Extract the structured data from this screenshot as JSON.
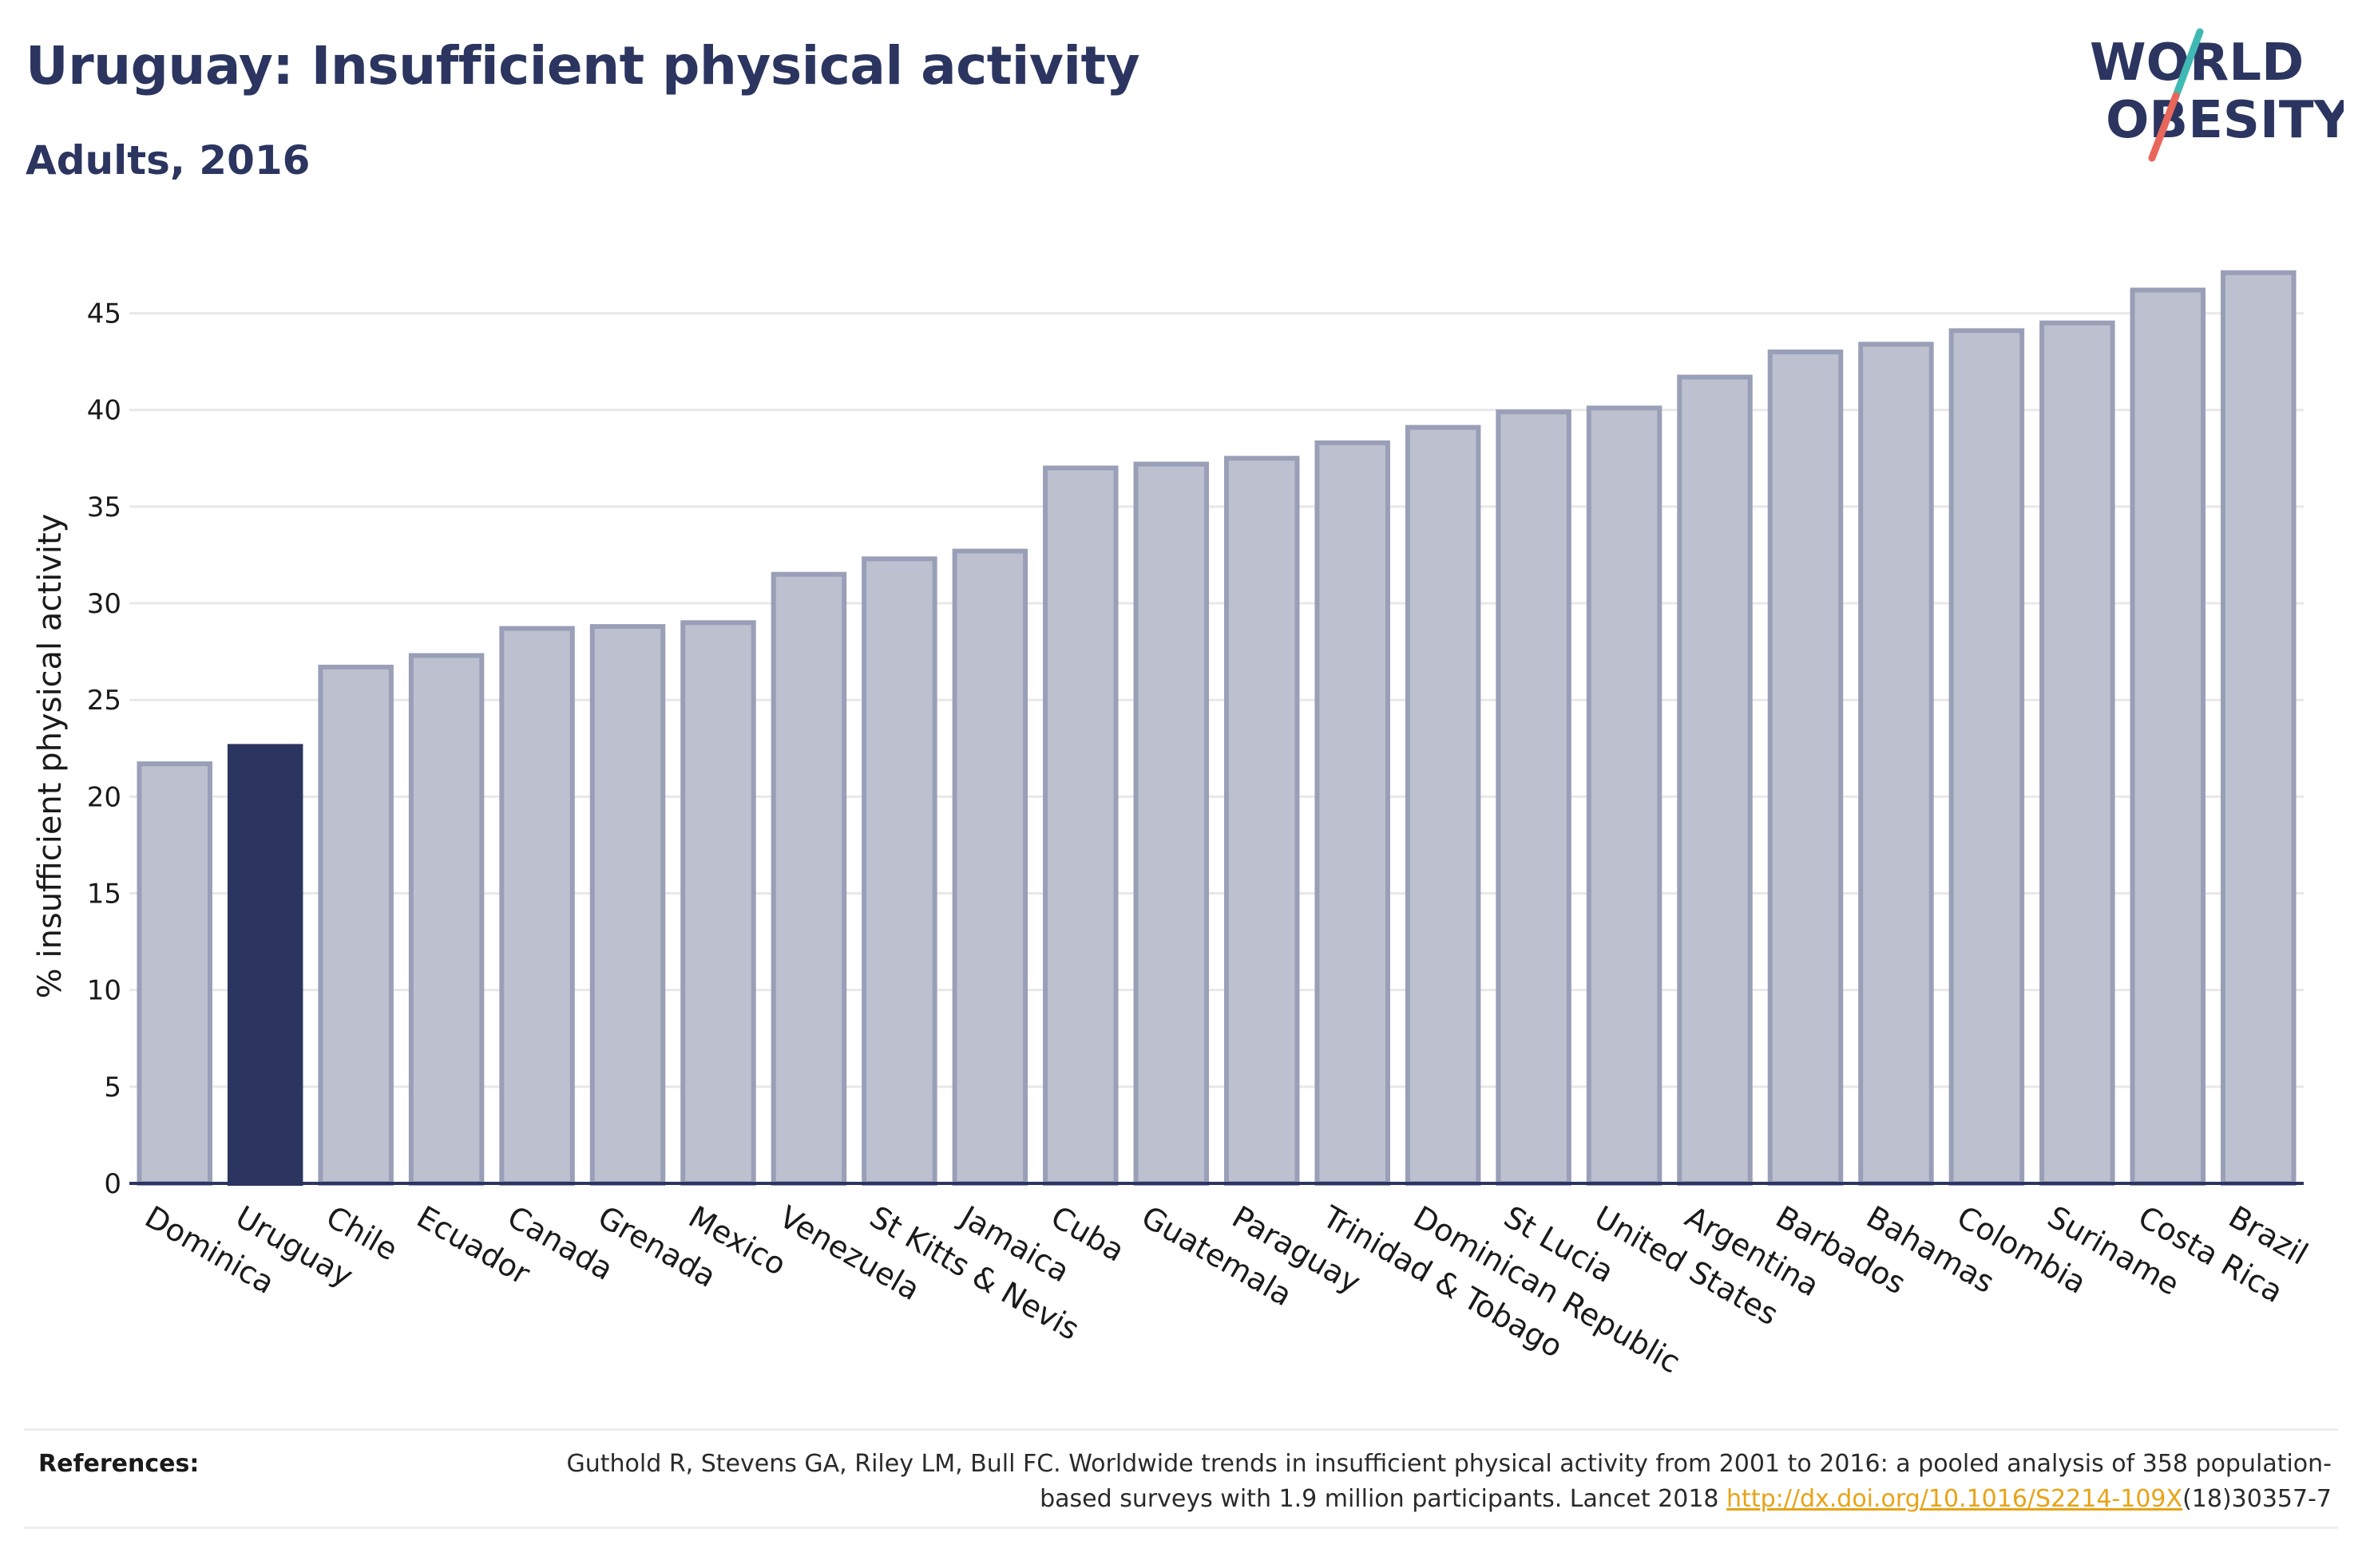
{
  "header": {
    "title": "Uruguay: Insufficient physical activity",
    "subtitle": "Adults, 2016"
  },
  "logo": {
    "line1": "WORLD",
    "line2": "OBESITY",
    "colors": {
      "text": "#2b3560",
      "slash_teal": "#3fb9b3",
      "slash_coral": "#e8665a"
    }
  },
  "colors": {
    "highlight_bar": "#2b3560",
    "other_bar_fill": "#bdc0cf",
    "other_bar_stroke": "#9a9fb8",
    "grid": "#e8e8e8",
    "axis": "#2b3560"
  },
  "chart_data": {
    "type": "bar",
    "ylabel": "% insufficient physical activity",
    "ylim": [
      0,
      47.5
    ],
    "yticks": [
      0,
      5,
      10,
      15,
      20,
      25,
      30,
      35,
      40,
      45
    ],
    "grid": true,
    "highlight": "Uruguay",
    "categories": [
      "Dominica",
      "Uruguay",
      "Chile",
      "Ecuador",
      "Canada",
      "Grenada",
      "Mexico",
      "Venezuela",
      "St Kitts & Nevis",
      "Jamaica",
      "Cuba",
      "Guatemala",
      "Paraguay",
      "Trinidad & Tobago",
      "Dominican Republic",
      "St Lucia",
      "United States",
      "Argentina",
      "Barbados",
      "Bahamas",
      "Colombia",
      "Suriname",
      "Costa Rica",
      "Brazil"
    ],
    "values": [
      21.7,
      22.6,
      26.7,
      27.3,
      28.7,
      28.8,
      29.0,
      31.5,
      32.3,
      32.7,
      37.0,
      37.2,
      37.5,
      38.3,
      39.1,
      39.9,
      40.1,
      41.7,
      43.0,
      43.4,
      44.1,
      44.5,
      46.2,
      47.1
    ]
  },
  "references": {
    "label": "References:",
    "text_before": "Guthold R, Stevens GA, Riley LM, Bull FC. Worldwide trends in insufficient physical activity from 2001 to 2016: a pooled analysis of 358 population-based surveys with 1.9 million participants. Lancet 2018 ",
    "link": "http://dx.doi.org/10.1016/S2214-109X",
    "text_after": "(18)30357-7"
  }
}
